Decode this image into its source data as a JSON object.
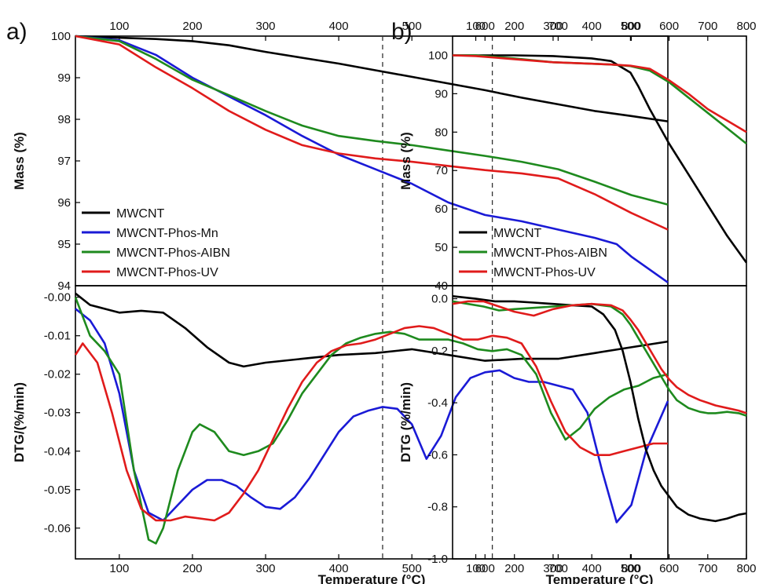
{
  "figure": {
    "panel_a_label": "a)",
    "panel_b_label": "b)",
    "x_title": "Temperature (°C)"
  },
  "chart_data": [
    {
      "type": "line",
      "panel": "a",
      "subplot": "top",
      "ylabel": "Mass (%)",
      "xlim": [
        40,
        850
      ],
      "ylim": [
        94,
        100
      ],
      "x_ticks": [
        100,
        200,
        300,
        400,
        500,
        600,
        700,
        800
      ],
      "x_tick_labels_side": "top",
      "y_ticks": [
        94,
        95,
        96,
        97,
        98,
        99,
        100
      ],
      "legend": "bottom-left",
      "vlines": [
        460,
        610
      ],
      "series": [
        {
          "name": "MWCNT",
          "color": "#000000",
          "x": [
            40,
            100,
            150,
            200,
            250,
            300,
            350,
            400,
            450,
            500,
            550,
            600,
            650,
            700,
            750,
            800,
            850
          ],
          "y": [
            100,
            99.96,
            99.93,
            99.88,
            99.78,
            99.62,
            99.48,
            99.34,
            99.18,
            99.02,
            98.86,
            98.7,
            98.52,
            98.36,
            98.2,
            98.08,
            97.95
          ]
        },
        {
          "name": "MWCNT-Phos-Mn",
          "color": "#1a1ad6",
          "x": [
            40,
            100,
            150,
            200,
            250,
            300,
            350,
            400,
            450,
            500,
            550,
            600,
            650,
            700,
            750,
            780,
            800,
            850
          ],
          "y": [
            100,
            99.9,
            99.55,
            99.0,
            98.55,
            98.1,
            97.6,
            97.15,
            96.8,
            96.45,
            96.0,
            95.7,
            95.55,
            95.35,
            95.15,
            95.0,
            94.7,
            94.08
          ]
        },
        {
          "name": "MWCNT-Phos-AIBN",
          "color": "#1e8a1e",
          "x": [
            40,
            100,
            150,
            200,
            250,
            300,
            350,
            400,
            450,
            500,
            550,
            600,
            650,
            700,
            750,
            800,
            850
          ],
          "y": [
            100,
            99.88,
            99.45,
            98.95,
            98.58,
            98.2,
            97.85,
            97.6,
            97.48,
            97.38,
            97.25,
            97.12,
            96.98,
            96.8,
            96.5,
            96.18,
            95.95
          ]
        },
        {
          "name": "MWCNT-Phos-UV",
          "color": "#e01b1b",
          "x": [
            40,
            100,
            150,
            200,
            250,
            300,
            350,
            400,
            450,
            500,
            550,
            600,
            650,
            700,
            750,
            800,
            850
          ],
          "y": [
            100,
            99.8,
            99.25,
            98.75,
            98.2,
            97.75,
            97.38,
            97.18,
            97.06,
            96.98,
            96.88,
            96.78,
            96.7,
            96.58,
            96.2,
            95.75,
            95.35
          ]
        }
      ]
    },
    {
      "type": "line",
      "panel": "a",
      "subplot": "bottom",
      "ylabel": "DTG/(%/min)",
      "xlabel": "Temperature (°C)",
      "xlim": [
        40,
        850
      ],
      "ylim": [
        -0.068,
        0.003
      ],
      "x_ticks": [
        100,
        200,
        300,
        400,
        500,
        600,
        700,
        800
      ],
      "y_ticks": [
        -0.06,
        -0.05,
        -0.04,
        -0.03,
        -0.02,
        -0.01,
        0
      ],
      "y_tick_labels": [
        "-0.06",
        "-0.05",
        "-0.04",
        "-0.03",
        "-0.02",
        "-0.01",
        "-0.00"
      ],
      "vlines": [
        460,
        610
      ],
      "series": [
        {
          "name": "MWCNT",
          "color": "#000000",
          "x": [
            40,
            60,
            80,
            100,
            130,
            160,
            190,
            220,
            250,
            270,
            300,
            350,
            400,
            450,
            500,
            550,
            600,
            650,
            700,
            750,
            800,
            850
          ],
          "y": [
            0.001,
            -0.002,
            -0.003,
            -0.004,
            -0.0035,
            -0.004,
            -0.008,
            -0.013,
            -0.017,
            -0.018,
            -0.017,
            -0.016,
            -0.015,
            -0.0145,
            -0.0135,
            -0.015,
            -0.0165,
            -0.016,
            -0.016,
            -0.0145,
            -0.013,
            -0.0115
          ]
        },
        {
          "name": "MWCNT-Phos-Mn",
          "color": "#1a1ad6",
          "x": [
            40,
            60,
            80,
            100,
            120,
            140,
            160,
            180,
            200,
            220,
            240,
            260,
            280,
            300,
            320,
            340,
            360,
            380,
            400,
            420,
            440,
            460,
            480,
            500,
            520,
            540,
            560,
            580,
            600,
            620,
            640,
            660,
            680,
            700,
            720,
            740,
            760,
            780,
            800,
            820,
            850
          ],
          "y": [
            -0.003,
            -0.006,
            -0.012,
            -0.025,
            -0.045,
            -0.056,
            -0.058,
            -0.054,
            -0.05,
            -0.0475,
            -0.0475,
            -0.049,
            -0.052,
            -0.0545,
            -0.055,
            -0.052,
            -0.047,
            -0.041,
            -0.035,
            -0.031,
            -0.0295,
            -0.0285,
            -0.029,
            -0.033,
            -0.042,
            -0.036,
            -0.026,
            -0.021,
            -0.0195,
            -0.019,
            -0.021,
            -0.022,
            -0.022,
            -0.023,
            -0.024,
            -0.03,
            -0.045,
            -0.0585,
            -0.054,
            -0.04,
            -0.027
          ]
        },
        {
          "name": "MWCNT-Phos-AIBN",
          "color": "#1e8a1e",
          "x": [
            40,
            60,
            80,
            100,
            120,
            140,
            150,
            160,
            180,
            200,
            210,
            230,
            250,
            270,
            290,
            310,
            330,
            350,
            370,
            390,
            410,
            430,
            450,
            470,
            490,
            510,
            530,
            550,
            570,
            590,
            610,
            630,
            650,
            670,
            690,
            710,
            730,
            750,
            770,
            790,
            810,
            830,
            850
          ],
          "y": [
            0.0,
            -0.01,
            -0.014,
            -0.02,
            -0.045,
            -0.063,
            -0.064,
            -0.06,
            -0.045,
            -0.035,
            -0.033,
            -0.035,
            -0.04,
            -0.041,
            -0.04,
            -0.038,
            -0.032,
            -0.025,
            -0.02,
            -0.015,
            -0.012,
            -0.0105,
            -0.0095,
            -0.009,
            -0.0095,
            -0.011,
            -0.011,
            -0.011,
            -0.012,
            -0.0135,
            -0.014,
            -0.0135,
            -0.015,
            -0.02,
            -0.03,
            -0.037,
            -0.034,
            -0.029,
            -0.026,
            -0.024,
            -0.023,
            -0.021,
            -0.02
          ]
        },
        {
          "name": "MWCNT-Phos-UV",
          "color": "#e01b1b",
          "x": [
            40,
            50,
            70,
            90,
            110,
            130,
            150,
            170,
            190,
            210,
            230,
            250,
            270,
            290,
            310,
            330,
            350,
            370,
            390,
            410,
            430,
            450,
            470,
            490,
            510,
            530,
            550,
            570,
            590,
            610,
            630,
            650,
            670,
            690,
            710,
            730,
            750,
            770,
            790,
            810,
            830,
            850
          ],
          "y": [
            -0.015,
            -0.012,
            -0.017,
            -0.03,
            -0.045,
            -0.055,
            -0.058,
            -0.058,
            -0.057,
            -0.0575,
            -0.058,
            -0.056,
            -0.051,
            -0.045,
            -0.037,
            -0.029,
            -0.022,
            -0.017,
            -0.014,
            -0.0125,
            -0.012,
            -0.011,
            -0.0095,
            -0.008,
            -0.0075,
            -0.008,
            -0.0095,
            -0.011,
            -0.011,
            -0.01,
            -0.0105,
            -0.012,
            -0.018,
            -0.027,
            -0.035,
            -0.039,
            -0.041,
            -0.041,
            -0.04,
            -0.039,
            -0.038,
            -0.038
          ]
        }
      ]
    },
    {
      "type": "line",
      "panel": "b",
      "subplot": "top",
      "ylabel": "Mass (%)",
      "xlim": [
        40,
        800
      ],
      "ylim": [
        40,
        105
      ],
      "x_ticks": [
        100,
        200,
        300,
        400,
        500,
        600,
        700,
        800
      ],
      "x_tick_labels_side": "top",
      "y_ticks": [
        40,
        50,
        60,
        70,
        80,
        90,
        100
      ],
      "legend": "bottom-left",
      "series": [
        {
          "name": "MWCNT",
          "color": "#000000",
          "x": [
            40,
            100,
            200,
            300,
            400,
            450,
            500,
            520,
            550,
            600,
            650,
            700,
            750,
            800
          ],
          "y": [
            100,
            100,
            100,
            99.8,
            99.2,
            98.5,
            95.5,
            92,
            86,
            77,
            69,
            61,
            53,
            46
          ]
        },
        {
          "name": "MWCNT-Phos-AIBN",
          "color": "#1e8a1e",
          "x": [
            40,
            100,
            200,
            300,
            400,
            450,
            500,
            550,
            600,
            650,
            700,
            750,
            800
          ],
          "y": [
            100,
            100,
            99.2,
            98.2,
            97.8,
            97.6,
            97.2,
            96,
            93,
            89,
            85,
            81,
            77
          ]
        },
        {
          "name": "MWCNT-Phos-UV",
          "color": "#e01b1b",
          "x": [
            40,
            100,
            200,
            300,
            400,
            450,
            500,
            550,
            600,
            650,
            700,
            750,
            800
          ],
          "y": [
            100,
            99.8,
            99,
            98.2,
            97.8,
            97.6,
            97.3,
            96.5,
            93.5,
            90,
            86,
            83,
            80
          ]
        }
      ]
    },
    {
      "type": "line",
      "panel": "b",
      "subplot": "bottom",
      "ylabel": "DTG (%/min)",
      "xlabel": "Temperature (°C)",
      "xlim": [
        40,
        800
      ],
      "ylim": [
        -1.0,
        0.05
      ],
      "x_ticks": [
        100,
        200,
        300,
        400,
        500,
        600,
        700,
        800
      ],
      "y_ticks": [
        -1.0,
        -0.8,
        -0.6,
        -0.4,
        -0.2,
        0.0
      ],
      "y_tick_labels": [
        "-1.0",
        "-0.8",
        "-0.6",
        "-0.4",
        "-0.2",
        "0.0"
      ],
      "series": [
        {
          "name": "MWCNT",
          "color": "#000000",
          "x": [
            40,
            100,
            150,
            200,
            250,
            300,
            350,
            400,
            430,
            460,
            480,
            500,
            520,
            540,
            560,
            580,
            600,
            620,
            650,
            680,
            700,
            720,
            750,
            780,
            800
          ],
          "y": [
            0.01,
            0.0,
            -0.01,
            -0.01,
            -0.015,
            -0.02,
            -0.025,
            -0.03,
            -0.06,
            -0.12,
            -0.2,
            -0.32,
            -0.46,
            -0.58,
            -0.66,
            -0.72,
            -0.76,
            -0.8,
            -0.83,
            -0.845,
            -0.85,
            -0.855,
            -0.845,
            -0.83,
            -0.825
          ]
        },
        {
          "name": "MWCNT-Phos-AIBN",
          "color": "#1e8a1e",
          "x": [
            40,
            80,
            120,
            160,
            200,
            250,
            300,
            350,
            400,
            450,
            480,
            500,
            520,
            540,
            560,
            580,
            600,
            620,
            650,
            680,
            700,
            720,
            750,
            780,
            800
          ],
          "y": [
            -0.01,
            -0.02,
            -0.03,
            -0.045,
            -0.04,
            -0.035,
            -0.03,
            -0.025,
            -0.02,
            -0.03,
            -0.06,
            -0.1,
            -0.15,
            -0.2,
            -0.25,
            -0.3,
            -0.35,
            -0.39,
            -0.42,
            -0.435,
            -0.44,
            -0.44,
            -0.435,
            -0.44,
            -0.45
          ]
        },
        {
          "name": "MWCNT-Phos-UV",
          "color": "#e01b1b",
          "x": [
            40,
            80,
            120,
            160,
            200,
            250,
            300,
            350,
            400,
            450,
            480,
            500,
            520,
            540,
            560,
            580,
            600,
            620,
            650,
            680,
            700,
            720,
            750,
            780,
            800
          ],
          "y": [
            -0.02,
            -0.01,
            -0.01,
            -0.03,
            -0.05,
            -0.065,
            -0.04,
            -0.025,
            -0.02,
            -0.025,
            -0.045,
            -0.08,
            -0.12,
            -0.17,
            -0.22,
            -0.27,
            -0.31,
            -0.34,
            -0.37,
            -0.39,
            -0.4,
            -0.41,
            -0.42,
            -0.43,
            -0.44
          ]
        }
      ]
    }
  ]
}
